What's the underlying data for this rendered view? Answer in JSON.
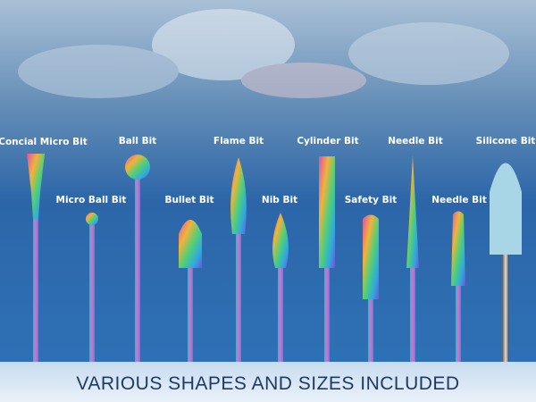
{
  "labels": [
    "Concial Micro Bit",
    "Ball Bit",
    "Flame Bit",
    "Cylinder Bit",
    "Needle Bit",
    "Silicone Bit",
    "Micro Ball Bit",
    "Bullet Bit",
    "Nib Bit",
    "Safety Bit",
    "Needle Bit"
  ],
  "banner": "VARIOUS SHAPES AND SIZES INCLUDED"
}
